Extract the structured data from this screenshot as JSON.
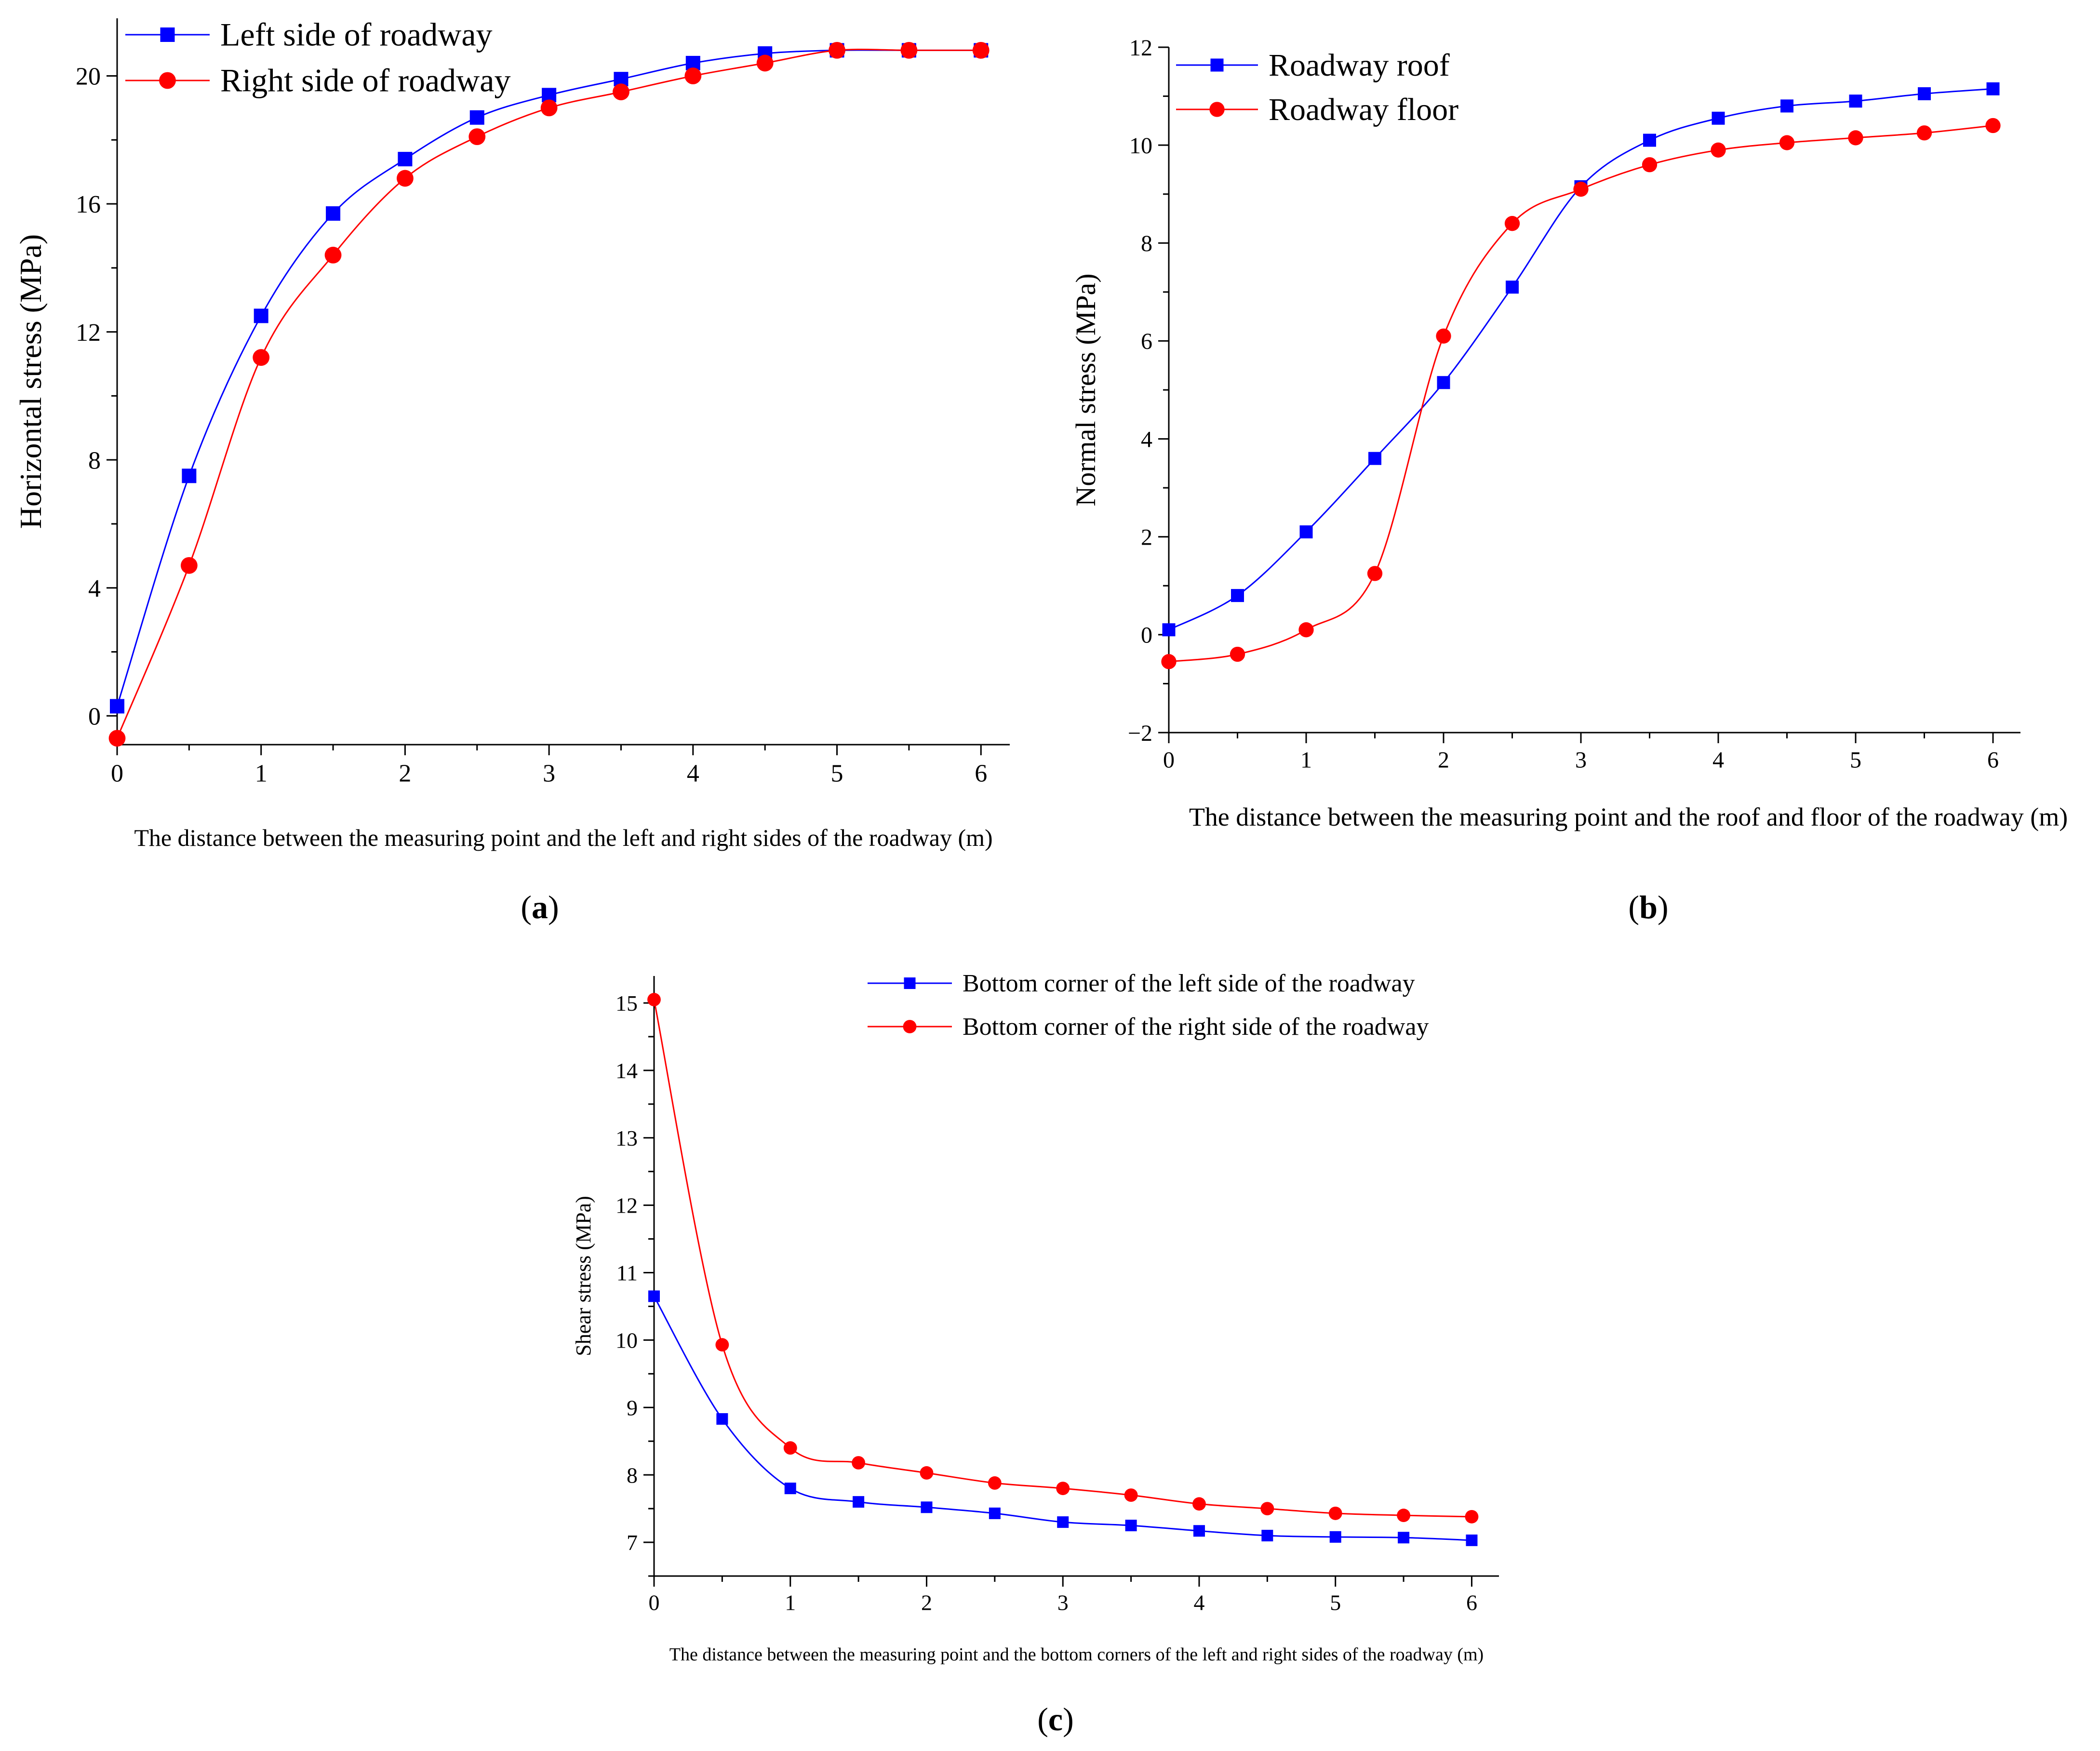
{
  "chart_data": [
    {
      "id": "a",
      "type": "line",
      "caption_letter": "a",
      "x": [
        0,
        0.5,
        1,
        1.5,
        2,
        2.5,
        3,
        3.5,
        4,
        4.5,
        5,
        5.5,
        6
      ],
      "xlim": [
        0,
        6.2
      ],
      "ylim": [
        -0.9,
        21.8
      ],
      "xticks": [
        0,
        1,
        2,
        3,
        4,
        5,
        6
      ],
      "yticks": [
        0,
        4,
        8,
        12,
        16,
        20
      ],
      "xlabel": "The distance between the measuring point and the left and right sides of the roadway (m)",
      "ylabel": "Horizontal stress (MPa)",
      "series": [
        {
          "name": "Left side of roadway",
          "color": "#0000ff",
          "marker": "square",
          "values": [
            0.3,
            7.5,
            12.5,
            15.7,
            17.4,
            18.7,
            19.4,
            19.9,
            20.4,
            20.7,
            20.8,
            20.8,
            20.8
          ]
        },
        {
          "name": "Right side of roadway",
          "color": "#ff0000",
          "marker": "circle",
          "values": [
            -0.7,
            4.7,
            11.2,
            14.4,
            16.8,
            18.1,
            19.0,
            19.5,
            20.0,
            20.4,
            20.8,
            20.8,
            20.8
          ]
        }
      ]
    },
    {
      "id": "b",
      "type": "line",
      "caption_letter": "b",
      "x": [
        0,
        0.5,
        1,
        1.5,
        2,
        2.5,
        3,
        3.5,
        4,
        4.5,
        5,
        5.5,
        6
      ],
      "xlim": [
        0,
        6.2
      ],
      "ylim": [
        -2,
        12
      ],
      "xticks": [
        0,
        1,
        2,
        3,
        4,
        5,
        6
      ],
      "yticks": [
        -2,
        0,
        2,
        4,
        6,
        8,
        10,
        12
      ],
      "xlabel": "The distance between the measuring point and the roof and floor of the roadway (m)",
      "ylabel": "Normal stress (MPa)",
      "series": [
        {
          "name": "Roadway roof",
          "color": "#0000ff",
          "marker": "square",
          "values": [
            0.1,
            0.8,
            2.1,
            3.6,
            5.15,
            7.1,
            9.15,
            10.1,
            10.55,
            10.8,
            10.9,
            11.05,
            11.15
          ]
        },
        {
          "name": "Roadway floor",
          "color": "#ff0000",
          "marker": "circle",
          "values": [
            -0.55,
            -0.4,
            0.1,
            1.25,
            6.1,
            8.4,
            9.1,
            9.6,
            9.9,
            10.05,
            10.15,
            10.25,
            10.4
          ]
        }
      ]
    },
    {
      "id": "c",
      "type": "line",
      "caption_letter": "c",
      "x": [
        0,
        0.5,
        1,
        1.5,
        2,
        2.5,
        3,
        3.5,
        4,
        4.5,
        5,
        5.5,
        6
      ],
      "xlim": [
        0,
        6.2
      ],
      "ylim": [
        6.5,
        15.4
      ],
      "xticks": [
        0,
        1,
        2,
        3,
        4,
        5,
        6
      ],
      "yticks": [
        7,
        8,
        9,
        10,
        11,
        12,
        13,
        14,
        15
      ],
      "xlabel": "The distance between the measuring point and the bottom corners of the left and right sides of the roadway (m)",
      "ylabel": "Shear stress (MPa)",
      "series": [
        {
          "name": "Bottom corner of the left side of the roadway",
          "color": "#0000ff",
          "marker": "square",
          "values": [
            10.65,
            8.83,
            7.8,
            7.6,
            7.52,
            7.43,
            7.3,
            7.25,
            7.17,
            7.1,
            7.08,
            7.07,
            7.03
          ]
        },
        {
          "name": "Bottom corner of the right side of the roadway",
          "color": "#ff0000",
          "marker": "circle",
          "values": [
            15.05,
            9.93,
            8.4,
            8.18,
            8.03,
            7.88,
            7.8,
            7.7,
            7.57,
            7.5,
            7.43,
            7.4,
            7.38
          ]
        }
      ]
    }
  ]
}
